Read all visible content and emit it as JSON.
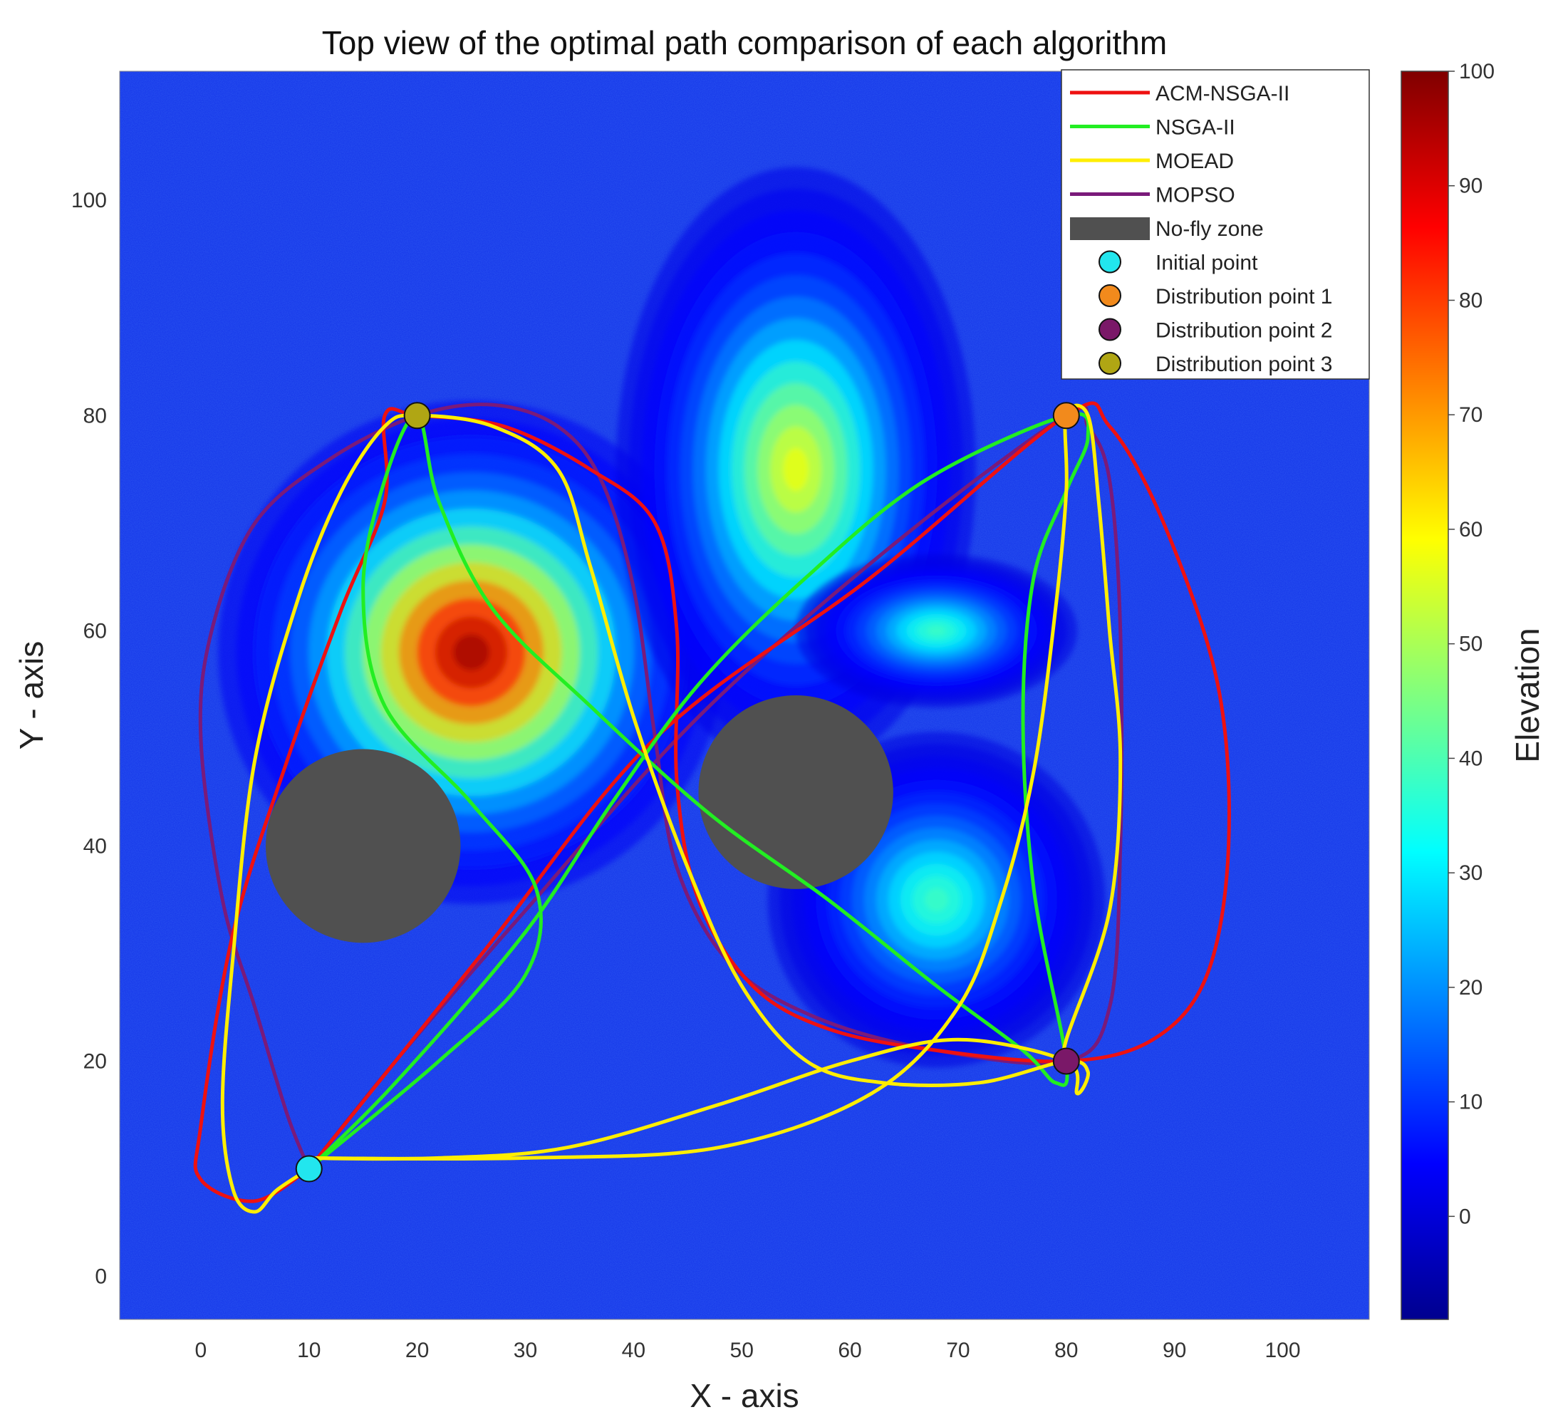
{
  "chart_data": {
    "type": "line",
    "title": "Top view of the optimal path comparison of each algorithm",
    "xlabel": "X - axis",
    "ylabel": "Y - axis",
    "xlim": [
      -7.5,
      108
    ],
    "ylim": [
      -4,
      112
    ],
    "xticks": [
      0,
      10,
      20,
      30,
      40,
      50,
      60,
      70,
      80,
      90,
      100
    ],
    "yticks": [
      0,
      20,
      40,
      60,
      80,
      100
    ],
    "grid": false,
    "legend_position": "top-right",
    "colorbar": {
      "label": "Elevation",
      "range": [
        -9,
        100
      ],
      "ticks": [
        0,
        10,
        20,
        30,
        40,
        50,
        60,
        70,
        80,
        90,
        100
      ],
      "colormap": "jet"
    },
    "terrain_peaks": [
      {
        "x": 25,
        "y": 58,
        "height": 100,
        "spread": 9
      },
      {
        "x": 55,
        "y": 75,
        "height": 60,
        "spread": 8
      },
      {
        "x": 68,
        "y": 60,
        "height": 40,
        "spread": 5
      },
      {
        "x": 68,
        "y": 35,
        "height": 40,
        "spread": 6
      }
    ],
    "no_fly_zones": [
      {
        "x": 15,
        "y": 40,
        "r": 9
      },
      {
        "x": 55,
        "y": 45,
        "r": 9
      }
    ],
    "points": [
      {
        "name": "Initial point",
        "x": 10,
        "y": 10,
        "color": "#22e6ee"
      },
      {
        "name": "Distribution point 1",
        "x": 80,
        "y": 80,
        "color": "#f28a1c"
      },
      {
        "name": "Distribution point 2",
        "x": 80,
        "y": 20,
        "color": "#7a1868"
      },
      {
        "name": "Distribution point 3",
        "x": 20,
        "y": 80,
        "color": "#b0a614"
      }
    ],
    "series": [
      {
        "name": "ACM-NSGA-II",
        "color": "#ee1111",
        "points": [
          [
            10,
            10
          ],
          [
            5,
            7
          ],
          [
            0,
            9
          ],
          [
            0,
            14
          ],
          [
            3,
            32
          ],
          [
            8,
            48
          ],
          [
            13,
            62
          ],
          [
            17,
            72
          ],
          [
            17,
            80
          ],
          [
            20,
            80
          ],
          [
            28,
            79
          ],
          [
            36,
            75
          ],
          [
            42,
            70
          ],
          [
            44,
            60
          ],
          [
            44,
            46
          ],
          [
            46,
            35
          ],
          [
            51,
            27
          ],
          [
            58,
            23
          ],
          [
            68,
            21
          ],
          [
            80,
            20
          ],
          [
            88,
            22
          ],
          [
            93,
            28
          ],
          [
            95,
            40
          ],
          [
            94,
            55
          ],
          [
            89,
            70
          ],
          [
            84,
            79
          ],
          [
            80,
            80
          ],
          [
            62,
            65
          ],
          [
            42,
            50
          ],
          [
            26,
            30
          ],
          [
            10,
            10
          ]
        ]
      },
      {
        "name": "NSGA-II",
        "color": "#22ee22",
        "points": [
          [
            10,
            10
          ],
          [
            22,
            20
          ],
          [
            30,
            28
          ],
          [
            31,
            36
          ],
          [
            25,
            44
          ],
          [
            17,
            53
          ],
          [
            15,
            64
          ],
          [
            17,
            74
          ],
          [
            20,
            80
          ],
          [
            22,
            72
          ],
          [
            27,
            62
          ],
          [
            36,
            53
          ],
          [
            47,
            43
          ],
          [
            58,
            35
          ],
          [
            68,
            27
          ],
          [
            76,
            21
          ],
          [
            79,
            18
          ],
          [
            80,
            20
          ],
          [
            77,
            36
          ],
          [
            76,
            52
          ],
          [
            77,
            65
          ],
          [
            80,
            73
          ],
          [
            82,
            78
          ],
          [
            80,
            80
          ],
          [
            67,
            74
          ],
          [
            56,
            65
          ],
          [
            46,
            55
          ],
          [
            38,
            44
          ],
          [
            30,
            32
          ],
          [
            18,
            18
          ],
          [
            10,
            10
          ]
        ]
      },
      {
        "name": "MOEAD",
        "color": "#ffee00",
        "points": [
          [
            10,
            10
          ],
          [
            7,
            8
          ],
          [
            5,
            6
          ],
          [
            3,
            8
          ],
          [
            2,
            16
          ],
          [
            3,
            30
          ],
          [
            5,
            48
          ],
          [
            9,
            63
          ],
          [
            13,
            73
          ],
          [
            17,
            79
          ],
          [
            20,
            80
          ],
          [
            27,
            79
          ],
          [
            33,
            75
          ],
          [
            36,
            66
          ],
          [
            40,
            52
          ],
          [
            45,
            38
          ],
          [
            50,
            27
          ],
          [
            56,
            20
          ],
          [
            63,
            18
          ],
          [
            72,
            18
          ],
          [
            80,
            20
          ],
          [
            82,
            19
          ],
          [
            81,
            17
          ],
          [
            80,
            20
          ],
          [
            70,
            22
          ],
          [
            60,
            20
          ],
          [
            48,
            16
          ],
          [
            34,
            12
          ],
          [
            22,
            11
          ],
          [
            10,
            11
          ],
          [
            30,
            11
          ],
          [
            48,
            12
          ],
          [
            62,
            17
          ],
          [
            70,
            25
          ],
          [
            74,
            35
          ],
          [
            77,
            47
          ],
          [
            79,
            62
          ],
          [
            80,
            73
          ],
          [
            80,
            80
          ],
          [
            82,
            80
          ],
          [
            83,
            72
          ],
          [
            84,
            60
          ],
          [
            85,
            48
          ],
          [
            84,
            34
          ],
          [
            80,
            22
          ],
          [
            80,
            20
          ]
        ]
      },
      {
        "name": "MOPSO",
        "color": "#7a1a7a",
        "points": [
          [
            10,
            10
          ],
          [
            8,
            15
          ],
          [
            5,
            25
          ],
          [
            2,
            35
          ],
          [
            0,
            50
          ],
          [
            1,
            60
          ],
          [
            5,
            70
          ],
          [
            12,
            76
          ],
          [
            20,
            80
          ],
          [
            27,
            81
          ],
          [
            33,
            79
          ],
          [
            37,
            74
          ],
          [
            40,
            64
          ],
          [
            42,
            50
          ],
          [
            44,
            38
          ],
          [
            49,
            29
          ],
          [
            57,
            24
          ],
          [
            68,
            21
          ],
          [
            80,
            20
          ],
          [
            84,
            25
          ],
          [
            85,
            40
          ],
          [
            85,
            60
          ],
          [
            84,
            74
          ],
          [
            82,
            79
          ],
          [
            80,
            80
          ],
          [
            64,
            68
          ],
          [
            46,
            52
          ],
          [
            30,
            34
          ],
          [
            18,
            20
          ],
          [
            10,
            10
          ]
        ]
      }
    ]
  },
  "legend": {
    "items": [
      {
        "label": "ACM-NSGA-II",
        "kind": "line",
        "color": "#ee1111"
      },
      {
        "label": "NSGA-II",
        "kind": "line",
        "color": "#22ee22"
      },
      {
        "label": "MOEAD",
        "kind": "line",
        "color": "#ffee00"
      },
      {
        "label": "MOPSO",
        "kind": "line",
        "color": "#7a1a7a"
      },
      {
        "label": "No-fly zone",
        "kind": "patch",
        "color": "#505050"
      },
      {
        "label": "Initial point",
        "kind": "marker",
        "color": "#22e6ee"
      },
      {
        "label": "Distribution point 1",
        "kind": "marker",
        "color": "#f28a1c"
      },
      {
        "label": "Distribution point 2",
        "kind": "marker",
        "color": "#7a1868"
      },
      {
        "label": "Distribution point 3",
        "kind": "marker",
        "color": "#b0a614"
      }
    ]
  }
}
